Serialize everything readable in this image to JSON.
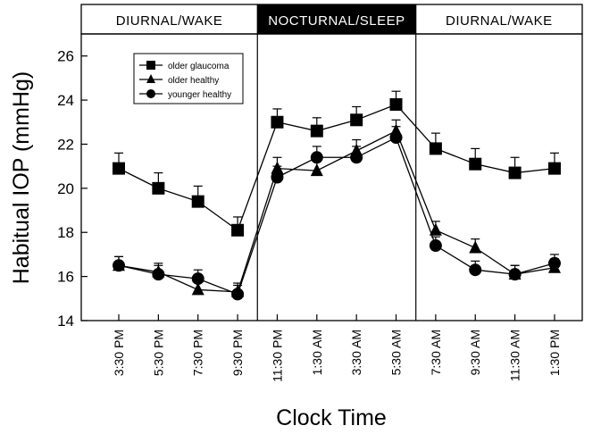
{
  "chart_data": {
    "type": "line",
    "ylabel": "Habitual IOP (mmHg)",
    "xlabel": "Clock Time",
    "ylim": [
      14,
      27
    ],
    "yticks": [
      14,
      16,
      18,
      20,
      22,
      24,
      26
    ],
    "categories": [
      "3:30 PM",
      "5:30 PM",
      "7:30 PM",
      "9:30 PM",
      "11:30 PM",
      "1:30 AM",
      "3:30 AM",
      "5:30 AM",
      "7:30 AM",
      "9:30 AM",
      "11:30 AM",
      "1:30 PM"
    ],
    "periods": [
      {
        "label": "DIURNAL/WAKE",
        "start": 0,
        "end": 4,
        "dark": false
      },
      {
        "label": "NOCTURNAL/SLEEP",
        "start": 4,
        "end": 8,
        "dark": true
      },
      {
        "label": "DIURNAL/WAKE",
        "start": 8,
        "end": 12,
        "dark": false
      }
    ],
    "series": [
      {
        "name": "older glaucoma",
        "marker": "square",
        "values": [
          20.9,
          20.0,
          19.4,
          18.1,
          23.0,
          22.6,
          23.1,
          23.8,
          21.8,
          21.1,
          20.7,
          20.9
        ],
        "errors": [
          0.7,
          0.7,
          0.7,
          0.6,
          0.6,
          0.6,
          0.6,
          0.6,
          0.7,
          0.7,
          0.7,
          0.7
        ]
      },
      {
        "name": "older healthy",
        "marker": "triangle",
        "values": [
          16.5,
          16.2,
          15.4,
          15.3,
          20.9,
          20.8,
          21.7,
          22.6,
          18.1,
          17.3,
          16.1,
          16.4
        ],
        "errors": [
          0.4,
          0.4,
          0.4,
          0.4,
          0.5,
          0.5,
          0.5,
          0.5,
          0.4,
          0.4,
          0.4,
          0.4
        ]
      },
      {
        "name": "younger healthy",
        "marker": "circle",
        "values": [
          16.5,
          16.1,
          15.9,
          15.2,
          20.5,
          21.4,
          21.4,
          22.3,
          17.4,
          16.3,
          16.1,
          16.6
        ],
        "errors": [
          0.4,
          0.4,
          0.4,
          0.4,
          0.5,
          0.5,
          0.5,
          0.5,
          0.4,
          0.4,
          0.4,
          0.4
        ]
      }
    ]
  }
}
